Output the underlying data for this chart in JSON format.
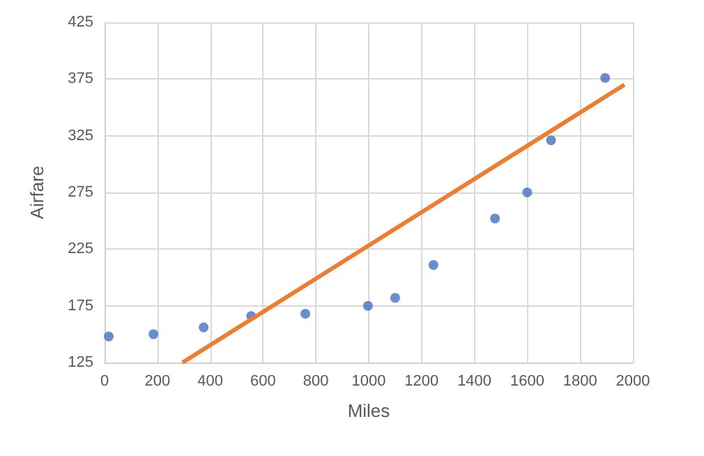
{
  "chart_data": {
    "type": "scatter",
    "xlabel": "Miles",
    "ylabel": "Airfare",
    "xlim": [
      0,
      2000
    ],
    "ylim": [
      125,
      425
    ],
    "xticks": [
      0,
      200,
      400,
      600,
      800,
      1000,
      1200,
      1400,
      1600,
      1800,
      2000
    ],
    "yticks": [
      125,
      175,
      225,
      275,
      325,
      375,
      425
    ],
    "grid": true,
    "series": [
      {
        "marker": "circle",
        "color": "#4472c4",
        "x": [
          16,
          185,
          375,
          555,
          760,
          997,
          1100,
          1245,
          1478,
          1600,
          1690,
          1895
        ],
        "values": [
          148,
          150,
          156,
          166,
          168,
          175,
          182,
          211,
          252,
          275,
          321,
          376
        ]
      },
      {
        "type": "line",
        "marker": "none",
        "color": "#ed7d31",
        "x": [
          295,
          1968
        ],
        "values": [
          125,
          370
        ]
      }
    ]
  }
}
